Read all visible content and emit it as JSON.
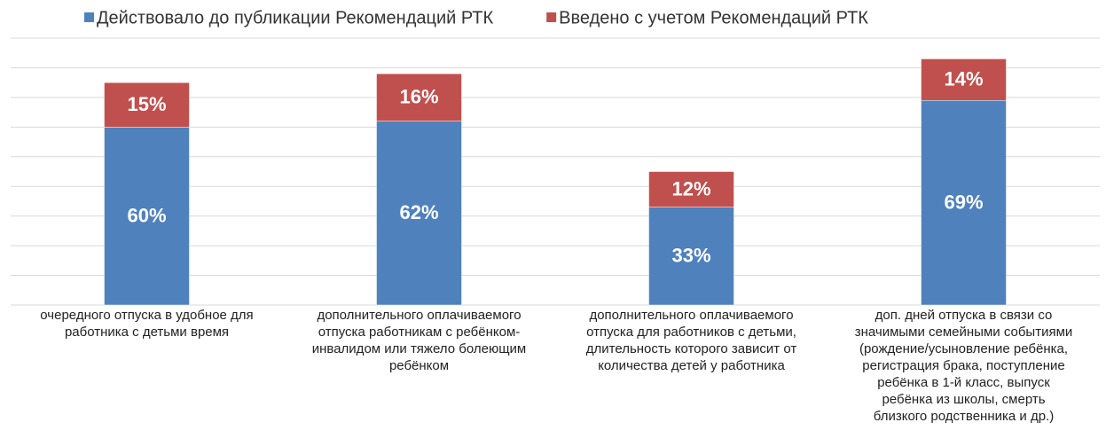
{
  "chart_data": {
    "type": "stacked_bar",
    "categories": [
      "очередного отпуска в удобное для\nработника с детьми время",
      "дополнительного оплачиваемого\nотпуска работникам  с ребёнком-\nинвалидом или тяжело болеющим\nребёнком",
      "дополнительного оплачиваемого\nотпуска для работников  с детьми,\nдлительность которого зависит от\nколичества детей у работника",
      "доп. дней отпуска в связи со\nзначимыми семейными событиями\n(рождение/усыновление ребёнка,\nрегистрация брака, поступление\nребёнка в 1-й класс, выпуск\nребёнка из школы, смерть\nблизкого родственника и др.)"
    ],
    "series": [
      {
        "name": "Действовало до публикации Рекомендаций РТК",
        "color": "#4f81bd",
        "values": [
          60,
          62,
          33,
          69
        ],
        "value_labels": [
          "60%",
          "62%",
          "33%",
          "69%"
        ]
      },
      {
        "name": "Введено с учетом Рекомендаций РТК",
        "color": "#c0504d",
        "values": [
          15,
          16,
          12,
          14
        ],
        "value_labels": [
          "15%",
          "16%",
          "12%",
          "14%"
        ]
      }
    ],
    "ylim": [
      0,
      90
    ],
    "yticks": [
      0,
      10,
      20,
      30,
      40,
      50,
      60,
      70,
      80,
      90
    ],
    "grid": true,
    "legend": "top"
  }
}
